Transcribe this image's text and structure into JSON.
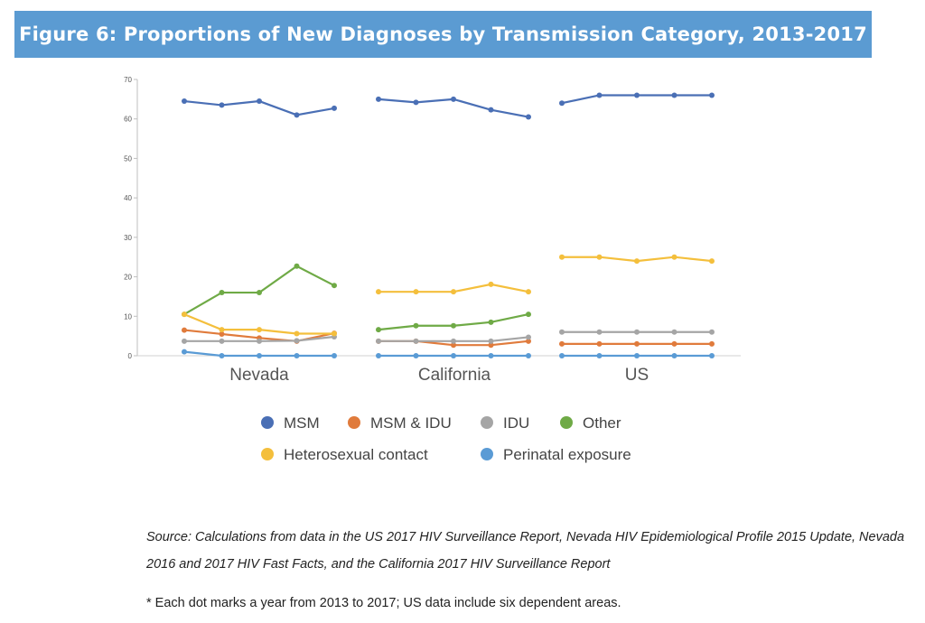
{
  "figure": {
    "title": "Figure 6: Proportions of New Diagnoses by Transmission Category, 2013-2017",
    "source": "Source: Calculations from data in the US 2017 HIV Surveillance Report, Nevada HIV Epidemiological Profile 2015 Update, Nevada 2016 and 2017 HIV Fast Facts, and the California 2017 HIV Surveillance Report",
    "note": "* Each dot marks a year from 2013 to 2017; US data include six dependent areas."
  },
  "chart_data": {
    "type": "line",
    "title": "Figure 6: Proportions of New Diagnoses by Transmission Category, 2013-2017",
    "xlabel": "",
    "ylabel": "",
    "ylim": [
      0,
      70
    ],
    "yticks": [
      0,
      10,
      20,
      30,
      40,
      50,
      60,
      70
    ],
    "grid": false,
    "legend_position": "bottom",
    "years": [
      2013,
      2014,
      2015,
      2016,
      2017
    ],
    "groups": [
      "Nevada",
      "California",
      "US"
    ],
    "series": [
      {
        "name": "MSM",
        "color": "#4a6fb5",
        "values": {
          "Nevada": [
            64.5,
            63.5,
            64.5,
            61,
            62.7
          ],
          "California": [
            65,
            64.2,
            65,
            62.3,
            60.5
          ],
          "US": [
            64,
            66,
            66,
            66,
            66
          ]
        }
      },
      {
        "name": "MSM & IDU",
        "color": "#e07b3c",
        "values": {
          "Nevada": [
            6.5,
            5.5,
            4.5,
            3.7,
            5.7
          ],
          "California": [
            3.7,
            3.7,
            2.7,
            2.7,
            3.7
          ],
          "US": [
            3,
            3,
            3,
            3,
            3
          ]
        }
      },
      {
        "name": "IDU",
        "color": "#a5a5a5",
        "values": {
          "Nevada": [
            3.7,
            3.7,
            3.7,
            3.8,
            4.8
          ],
          "California": [
            3.7,
            3.7,
            3.7,
            3.7,
            4.7
          ],
          "US": [
            6,
            6,
            6,
            6,
            6
          ]
        }
      },
      {
        "name": "Other",
        "color": "#6faa46",
        "values": {
          "Nevada": [
            10.5,
            16,
            16,
            22.7,
            17.8
          ],
          "California": [
            6.6,
            7.6,
            7.6,
            8.5,
            10.5
          ],
          "US": [
            null,
            null,
            null,
            null,
            null
          ]
        }
      },
      {
        "name": "Heterosexual contact",
        "color": "#f4bf3c",
        "values": {
          "Nevada": [
            10.5,
            6.6,
            6.6,
            5.6,
            5.6
          ],
          "California": [
            16.2,
            16.2,
            16.2,
            18.1,
            16.2
          ],
          "US": [
            25,
            25,
            24,
            25,
            24
          ]
        }
      },
      {
        "name": "Perinatal exposure",
        "color": "#5a9bd5",
        "values": {
          "Nevada": [
            1,
            0,
            0,
            0,
            0
          ],
          "California": [
            0,
            0,
            0,
            0,
            0
          ],
          "US": [
            0,
            0,
            0,
            0,
            0
          ]
        }
      }
    ]
  }
}
